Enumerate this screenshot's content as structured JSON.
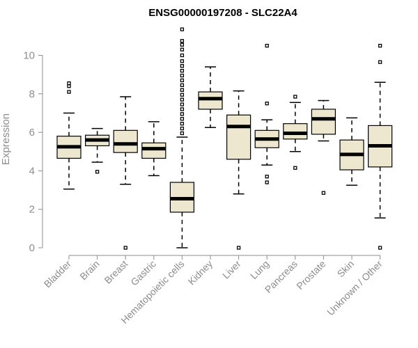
{
  "chart_data": {
    "type": "boxplot",
    "title": "ENSG00000197208 - SLC22A4",
    "xlabel": "",
    "ylabel": "Expression",
    "ylim": [
      0,
      11.5
    ],
    "yticks": [
      0,
      2,
      4,
      6,
      8,
      10
    ],
    "box_color": "#ede7d0",
    "axis_color": "#8c8c8c",
    "categories": [
      "Bladder",
      "Brain",
      "Breast",
      "Gastric",
      "Hematopoietic cells",
      "Kidney",
      "Liver",
      "Lung",
      "Pancreas",
      "Prostate",
      "Skin",
      "Unknown / Other"
    ],
    "boxes": [
      {
        "name": "Bladder",
        "whisker_low": 3.05,
        "q1": 4.65,
        "median": 5.25,
        "q3": 5.8,
        "whisker_high": 7.0,
        "outliers": [
          8.1,
          8.4,
          8.55
        ]
      },
      {
        "name": "Brain",
        "whisker_low": 4.45,
        "q1": 5.3,
        "median": 5.6,
        "q3": 5.85,
        "whisker_high": 6.2,
        "outliers": [
          3.95
        ]
      },
      {
        "name": "Breast",
        "whisker_low": 3.3,
        "q1": 4.95,
        "median": 5.4,
        "q3": 6.1,
        "whisker_high": 7.85,
        "outliers": [
          0.0
        ]
      },
      {
        "name": "Gastric",
        "whisker_low": 3.75,
        "q1": 4.65,
        "median": 5.15,
        "q3": 5.45,
        "whisker_high": 6.55,
        "outliers": []
      },
      {
        "name": "Hematopoietic cells",
        "whisker_low": 0.0,
        "q1": 1.85,
        "median": 2.55,
        "q3": 3.4,
        "whisker_high": 5.75,
        "outliers": [
          5.95,
          6.2,
          6.45,
          6.7,
          6.95,
          7.2,
          7.45,
          7.7,
          7.95,
          8.2,
          8.45,
          8.7,
          8.95,
          9.2,
          9.45,
          9.7,
          10.0,
          10.3,
          10.55,
          10.75,
          11.35
        ]
      },
      {
        "name": "Kidney",
        "whisker_low": 6.25,
        "q1": 7.2,
        "median": 7.75,
        "q3": 8.1,
        "whisker_high": 9.4,
        "outliers": []
      },
      {
        "name": "Liver",
        "whisker_low": 2.8,
        "q1": 4.6,
        "median": 6.3,
        "q3": 6.9,
        "whisker_high": 8.15,
        "outliers": [
          0.0
        ]
      },
      {
        "name": "Lung",
        "whisker_low": 4.3,
        "q1": 5.2,
        "median": 5.65,
        "q3": 6.1,
        "whisker_high": 6.65,
        "outliers": [
          3.4,
          3.7,
          7.5,
          10.5
        ]
      },
      {
        "name": "Pancreas",
        "whisker_low": 5.0,
        "q1": 5.65,
        "median": 5.95,
        "q3": 6.45,
        "whisker_high": 7.55,
        "outliers": [
          4.15,
          7.85
        ]
      },
      {
        "name": "Prostate",
        "whisker_low": 5.55,
        "q1": 5.9,
        "median": 6.7,
        "q3": 7.2,
        "whisker_high": 7.65,
        "outliers": [
          2.85
        ]
      },
      {
        "name": "Skin",
        "whisker_low": 3.25,
        "q1": 4.05,
        "median": 4.85,
        "q3": 5.6,
        "whisker_high": 6.75,
        "outliers": []
      },
      {
        "name": "Unknown / Other",
        "whisker_low": 1.55,
        "q1": 4.2,
        "median": 5.3,
        "q3": 6.35,
        "whisker_high": 8.6,
        "outliers": [
          0.0,
          9.65,
          10.5
        ]
      }
    ]
  }
}
